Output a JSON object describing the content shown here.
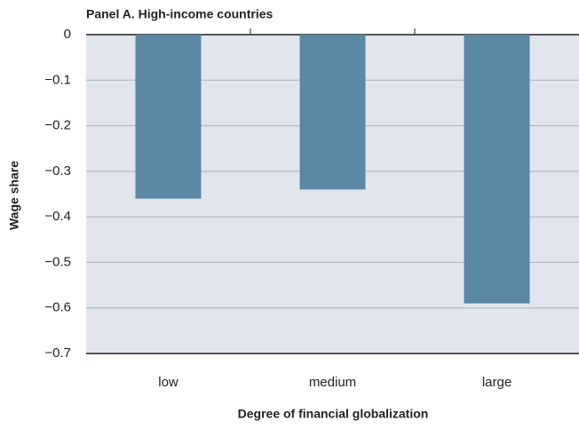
{
  "chart_data": {
    "type": "bar",
    "title": "Panel A.  High-income countries",
    "x_label": "Degree of financial globalization",
    "y_label": "Wage share",
    "categories": [
      "low",
      "medium",
      "large"
    ],
    "values": [
      -0.36,
      -0.34,
      -0.59
    ],
    "color": "#5b88a5",
    "ylim": [
      -0.7,
      0
    ],
    "yticks": [
      0,
      {
        "value": -0.1,
        "label": "−0.1"
      },
      {
        "value": -0.2,
        "label": "−0.2"
      },
      {
        "value": -0.3,
        "label": "−0.3"
      },
      {
        "value": -0.4,
        "label": "−0.4"
      },
      {
        "value": -0.5,
        "label": "−0.5"
      },
      {
        "value": -0.6,
        "label": "−0.6"
      },
      {
        "value": -0.7,
        "label": "−0.7"
      }
    ],
    "grid": true
  }
}
